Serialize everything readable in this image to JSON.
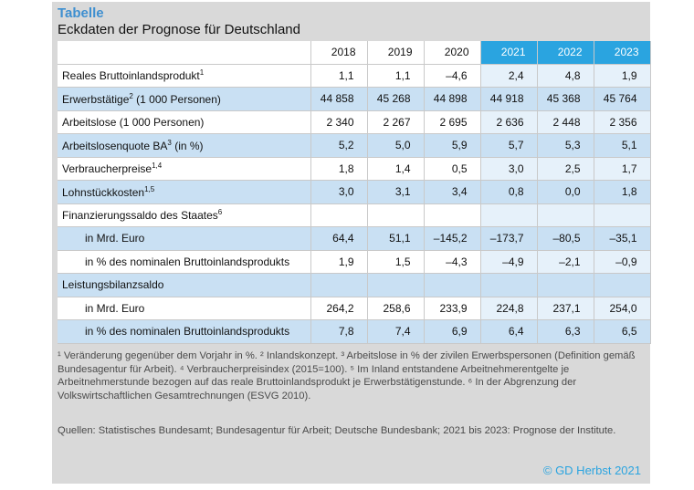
{
  "label": "Tabelle",
  "title": "Eckdaten der Prognose für Deutschland",
  "years": [
    "2018",
    "2019",
    "2020",
    "2021",
    "2022",
    "2023"
  ],
  "forecast_from_index": 3,
  "rows": [
    {
      "label": "Reales Bruttoinlandsprodukt",
      "sup": "1",
      "indent": false,
      "shade": "white",
      "values": [
        "1,1",
        "1,1",
        "–4,6",
        "2,4",
        "4,8",
        "1,9"
      ]
    },
    {
      "label": "Erwerbstätige",
      "sup": "2",
      "suffix": " (1 000 Personen)",
      "indent": false,
      "shade": "blue",
      "values": [
        "44 858",
        "45 268",
        "44 898",
        "44 918",
        "45 368",
        "45 764"
      ]
    },
    {
      "label": "Arbeitslose (1 000 Personen)",
      "indent": false,
      "shade": "white",
      "values": [
        "2 340",
        "2 267",
        "2 695",
        "2 636",
        "2 448",
        "2 356"
      ]
    },
    {
      "label": "Arbeitslosenquote BA",
      "sup": "3",
      "suffix": " (in %)",
      "indent": false,
      "shade": "blue",
      "values": [
        "5,2",
        "5,0",
        "5,9",
        "5,7",
        "5,3",
        "5,1"
      ]
    },
    {
      "label": "Verbraucherpreise",
      "sup": "1,4",
      "indent": false,
      "shade": "white",
      "values": [
        "1,8",
        "1,4",
        "0,5",
        "3,0",
        "2,5",
        "1,7"
      ]
    },
    {
      "label": "Lohnstückkosten",
      "sup": "1,5",
      "indent": false,
      "shade": "blue",
      "values": [
        "3,0",
        "3,1",
        "3,4",
        "0,8",
        "0,0",
        "1,8"
      ]
    },
    {
      "label": "Finanzierungssaldo des Staates",
      "sup": "6",
      "indent": false,
      "shade": "white",
      "values": [
        "",
        "",
        "",
        "",
        "",
        ""
      ]
    },
    {
      "label": "in Mrd. Euro",
      "indent": true,
      "shade": "blue",
      "values": [
        "64,4",
        "51,1",
        "–145,2",
        "–173,7",
        "–80,5",
        "–35,1"
      ]
    },
    {
      "label": "in % des nominalen Bruttoinlandsprodukts",
      "indent": true,
      "shade": "white",
      "values": [
        "1,9",
        "1,5",
        "–4,3",
        "–4,9",
        "–2,1",
        "–0,9"
      ]
    },
    {
      "label": "Leistungsbilanzsaldo",
      "indent": false,
      "shade": "blue",
      "values": [
        "",
        "",
        "",
        "",
        "",
        ""
      ]
    },
    {
      "label": "in Mrd. Euro",
      "indent": true,
      "shade": "white",
      "values": [
        "264,2",
        "258,6",
        "233,9",
        "224,8",
        "237,1",
        "254,0"
      ]
    },
    {
      "label": "in % des nominalen Bruttoinlandsprodukts",
      "indent": true,
      "shade": "blue",
      "values": [
        "7,8",
        "7,4",
        "6,9",
        "6,4",
        "6,3",
        "6,5"
      ]
    }
  ],
  "footnotes": "¹ Veränderung gegenüber dem Vorjahr in %. ² Inlandskonzept. ³ Arbeitslose in % der zivilen Erwerbspersonen (Definition gemäß Bundesagentur für Arbeit). ⁴ Verbraucherpreisindex (2015=100). ⁵ Im Inland entstandene Arbeitnehmerentgelte je Arbeitnehmerstunde bezogen auf das reale Bruttoinlandsprodukt je Erwerbstätigenstunde. ⁶ In der Abgrenzung der Volkswirtschaftlichen Gesamtrechnungen (ESVG 2010).",
  "sources": "Quellen: Statistisches Bundesamt; Bundesagentur für Arbeit; Deutsche Bundesbank; 2021 bis 2023: Prognose der Institute.",
  "copyright": "© GD Herbst 2021",
  "colors": {
    "accent": "#2aa4e0",
    "row_blue": "#c9e0f3",
    "panel": "#d9d9d9"
  }
}
